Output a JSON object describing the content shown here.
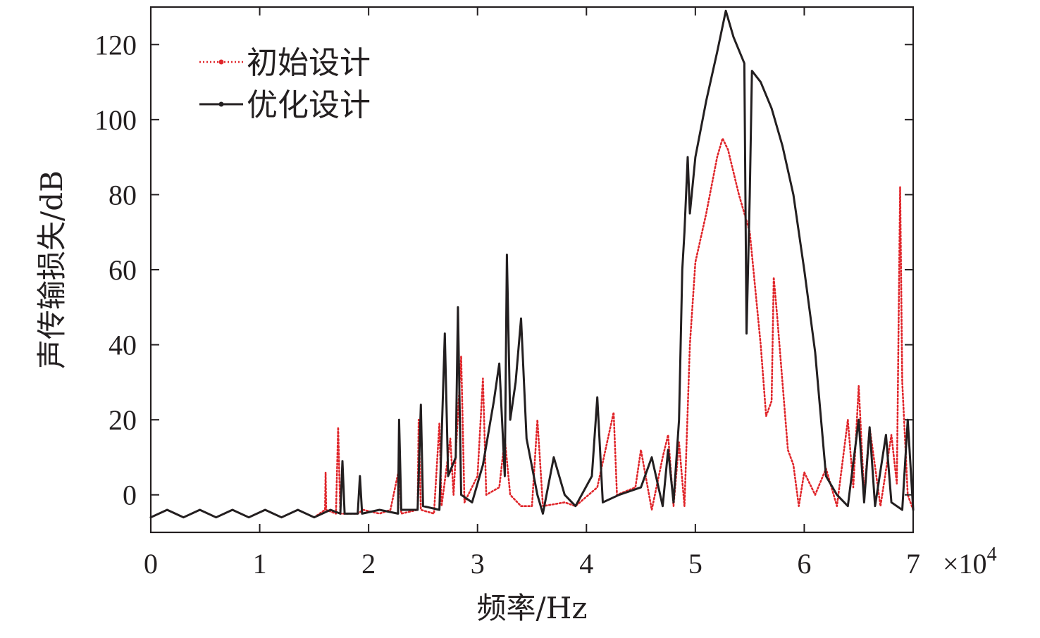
{
  "chart_data": {
    "type": "line",
    "xlabel": "频率/Hz",
    "ylabel": "声传输损失/dB",
    "x_multiplier": "×10",
    "x_multiplier_exp": "4",
    "xlim": [
      0,
      7
    ],
    "ylim": [
      -10,
      130
    ],
    "x_ticks": [
      "0",
      "1",
      "2",
      "3",
      "4",
      "5",
      "6",
      "7"
    ],
    "y_ticks": [
      "0",
      "20",
      "40",
      "60",
      "80",
      "100",
      "120"
    ],
    "legend_position": "top-left",
    "grid": false,
    "series": [
      {
        "name": "初始设计",
        "color": "#e0262b",
        "style": "dotted",
        "points": [
          [
            0,
            -6
          ],
          [
            0.15,
            -4
          ],
          [
            0.3,
            -6
          ],
          [
            0.45,
            -4
          ],
          [
            0.6,
            -6
          ],
          [
            0.75,
            -4
          ],
          [
            0.9,
            -6
          ],
          [
            1.05,
            -4
          ],
          [
            1.2,
            -6
          ],
          [
            1.35,
            -4
          ],
          [
            1.5,
            -6
          ],
          [
            1.6,
            -4
          ],
          [
            1.605,
            6
          ],
          [
            1.61,
            -4
          ],
          [
            1.7,
            -5
          ],
          [
            1.72,
            18
          ],
          [
            1.74,
            -5
          ],
          [
            1.9,
            -5
          ],
          [
            1.95,
            -4
          ],
          [
            2.1,
            -5
          ],
          [
            2.2,
            -4
          ],
          [
            2.28,
            7
          ],
          [
            2.3,
            -5
          ],
          [
            2.45,
            -4
          ],
          [
            2.46,
            20
          ],
          [
            2.48,
            -4
          ],
          [
            2.6,
            -5
          ],
          [
            2.65,
            19
          ],
          [
            2.67,
            -3
          ],
          [
            2.75,
            15
          ],
          [
            2.78,
            0
          ],
          [
            2.85,
            37
          ],
          [
            2.88,
            -2
          ],
          [
            3.0,
            5
          ],
          [
            3.05,
            31
          ],
          [
            3.08,
            0
          ],
          [
            3.2,
            2
          ],
          [
            3.25,
            15
          ],
          [
            3.3,
            0
          ],
          [
            3.4,
            -3
          ],
          [
            3.5,
            -3
          ],
          [
            3.55,
            20
          ],
          [
            3.6,
            -3
          ],
          [
            3.8,
            -2
          ],
          [
            3.9,
            -3
          ],
          [
            4.1,
            2
          ],
          [
            4.25,
            22
          ],
          [
            4.28,
            0
          ],
          [
            4.45,
            2
          ],
          [
            4.5,
            12
          ],
          [
            4.6,
            -4
          ],
          [
            4.7,
            10
          ],
          [
            4.75,
            16
          ],
          [
            4.8,
            -3
          ],
          [
            4.85,
            14
          ],
          [
            4.9,
            -3
          ],
          [
            4.95,
            40
          ],
          [
            5.0,
            62
          ],
          [
            5.1,
            75
          ],
          [
            5.2,
            90
          ],
          [
            5.25,
            95
          ],
          [
            5.3,
            92
          ],
          [
            5.4,
            80
          ],
          [
            5.5,
            70
          ],
          [
            5.6,
            40
          ],
          [
            5.65,
            21
          ],
          [
            5.7,
            25
          ],
          [
            5.72,
            58
          ],
          [
            5.75,
            48
          ],
          [
            5.8,
            30
          ],
          [
            5.85,
            12
          ],
          [
            5.9,
            8
          ],
          [
            5.95,
            -3
          ],
          [
            6.0,
            6
          ],
          [
            6.1,
            0
          ],
          [
            6.2,
            7
          ],
          [
            6.3,
            -3
          ],
          [
            6.4,
            20
          ],
          [
            6.45,
            2
          ],
          [
            6.5,
            29
          ],
          [
            6.55,
            0
          ],
          [
            6.6,
            18
          ],
          [
            6.7,
            -3
          ],
          [
            6.8,
            16
          ],
          [
            6.85,
            3
          ],
          [
            6.88,
            82
          ],
          [
            6.9,
            30
          ],
          [
            6.95,
            0
          ],
          [
            7.0,
            -4
          ]
        ]
      },
      {
        "name": "优化设计",
        "color": "#231f20",
        "style": "solid",
        "points": [
          [
            0,
            -6
          ],
          [
            0.15,
            -4
          ],
          [
            0.3,
            -6
          ],
          [
            0.45,
            -4
          ],
          [
            0.6,
            -6
          ],
          [
            0.75,
            -4
          ],
          [
            0.9,
            -6
          ],
          [
            1.05,
            -4
          ],
          [
            1.2,
            -6
          ],
          [
            1.35,
            -4
          ],
          [
            1.5,
            -6
          ],
          [
            1.65,
            -4
          ],
          [
            1.74,
            -5
          ],
          [
            1.76,
            9
          ],
          [
            1.78,
            -5
          ],
          [
            1.9,
            -5
          ],
          [
            1.92,
            5
          ],
          [
            1.94,
            -5
          ],
          [
            2.1,
            -4
          ],
          [
            2.27,
            -5
          ],
          [
            2.28,
            20
          ],
          [
            2.3,
            -4
          ],
          [
            2.45,
            -4
          ],
          [
            2.48,
            24
          ],
          [
            2.5,
            -3
          ],
          [
            2.65,
            -4
          ],
          [
            2.7,
            43
          ],
          [
            2.73,
            5
          ],
          [
            2.8,
            10
          ],
          [
            2.82,
            50
          ],
          [
            2.85,
            0
          ],
          [
            2.95,
            -2
          ],
          [
            3.05,
            8
          ],
          [
            3.15,
            25
          ],
          [
            3.2,
            35
          ],
          [
            3.25,
            5
          ],
          [
            3.27,
            64
          ],
          [
            3.3,
            20
          ],
          [
            3.35,
            30
          ],
          [
            3.4,
            47
          ],
          [
            3.45,
            15
          ],
          [
            3.55,
            0
          ],
          [
            3.6,
            -5
          ],
          [
            3.7,
            10
          ],
          [
            3.8,
            0
          ],
          [
            3.9,
            -3
          ],
          [
            4.05,
            5
          ],
          [
            4.1,
            26
          ],
          [
            4.15,
            -2
          ],
          [
            4.3,
            0
          ],
          [
            4.5,
            2
          ],
          [
            4.6,
            10
          ],
          [
            4.7,
            -3
          ],
          [
            4.75,
            12
          ],
          [
            4.8,
            -2
          ],
          [
            4.85,
            20
          ],
          [
            4.88,
            60
          ],
          [
            4.9,
            70
          ],
          [
            4.93,
            90
          ],
          [
            4.95,
            75
          ],
          [
            5.0,
            90
          ],
          [
            5.1,
            105
          ],
          [
            5.2,
            118
          ],
          [
            5.28,
            129
          ],
          [
            5.35,
            122
          ],
          [
            5.45,
            115
          ],
          [
            5.47,
            43
          ],
          [
            5.5,
            80
          ],
          [
            5.52,
            113
          ],
          [
            5.6,
            110
          ],
          [
            5.7,
            103
          ],
          [
            5.8,
            93
          ],
          [
            5.9,
            80
          ],
          [
            6.0,
            60
          ],
          [
            6.1,
            38
          ],
          [
            6.2,
            5
          ],
          [
            6.3,
            0
          ],
          [
            6.4,
            -3
          ],
          [
            6.5,
            20
          ],
          [
            6.55,
            -2
          ],
          [
            6.6,
            18
          ],
          [
            6.65,
            -3
          ],
          [
            6.75,
            16
          ],
          [
            6.8,
            -2
          ],
          [
            6.9,
            -4
          ],
          [
            6.95,
            20
          ],
          [
            7.0,
            -4
          ]
        ]
      }
    ]
  }
}
